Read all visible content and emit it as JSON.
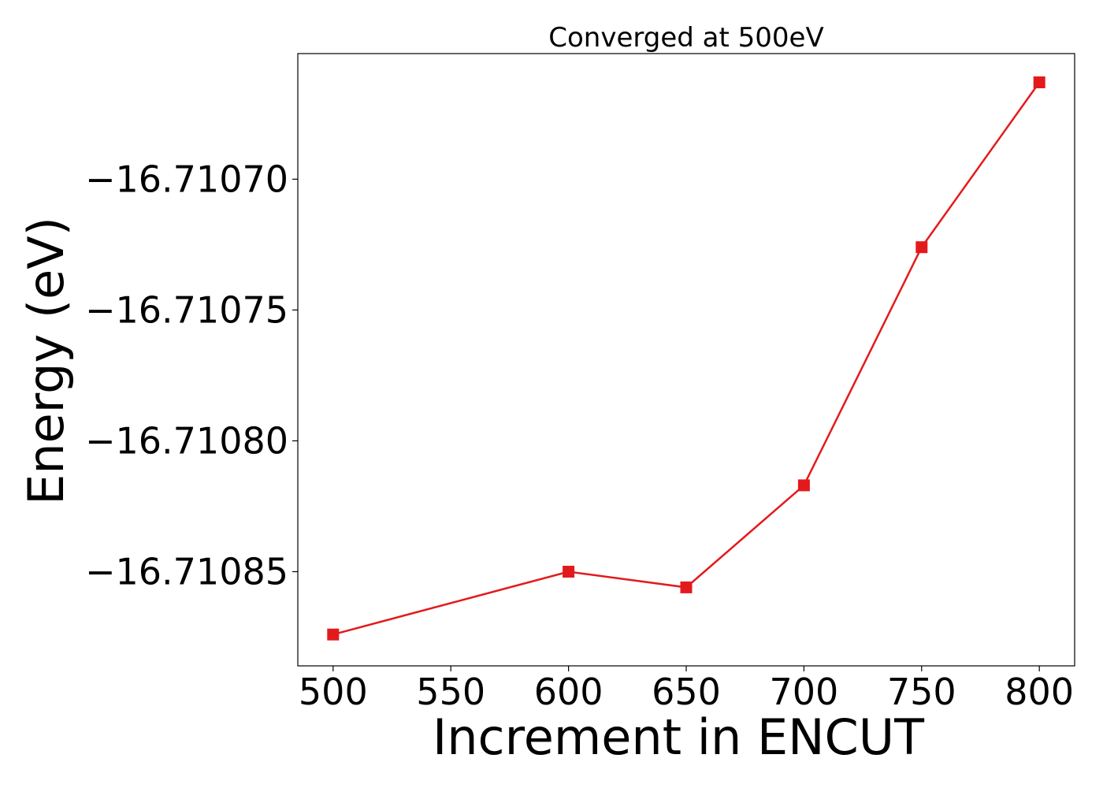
{
  "chart_data": {
    "type": "line",
    "title": "Converged at 500eV",
    "xlabel": "Increment in ENCUT",
    "ylabel": "Energy (eV)",
    "x": [
      500,
      600,
      650,
      700,
      750,
      800
    ],
    "series": [
      {
        "values": [
          -16.710874,
          -16.71085,
          -16.710856,
          -16.710817,
          -16.710726,
          -16.710663
        ],
        "color": "#e31a1c",
        "marker": "square"
      }
    ],
    "xlim": [
      485,
      815
    ],
    "ylim": [
      -16.710886,
      -16.710652
    ],
    "xticks": [
      500,
      550,
      600,
      650,
      700,
      750,
      800
    ],
    "xtick_labels": [
      "500",
      "550",
      "600",
      "650",
      "700",
      "750",
      "800"
    ],
    "yticks": [
      -16.7107,
      -16.71075,
      -16.7108,
      -16.71085
    ],
    "ytick_labels": [
      "−16.71070",
      "−16.71075",
      "−16.71080",
      "−16.71085"
    ],
    "grid": false,
    "legend": false
  }
}
